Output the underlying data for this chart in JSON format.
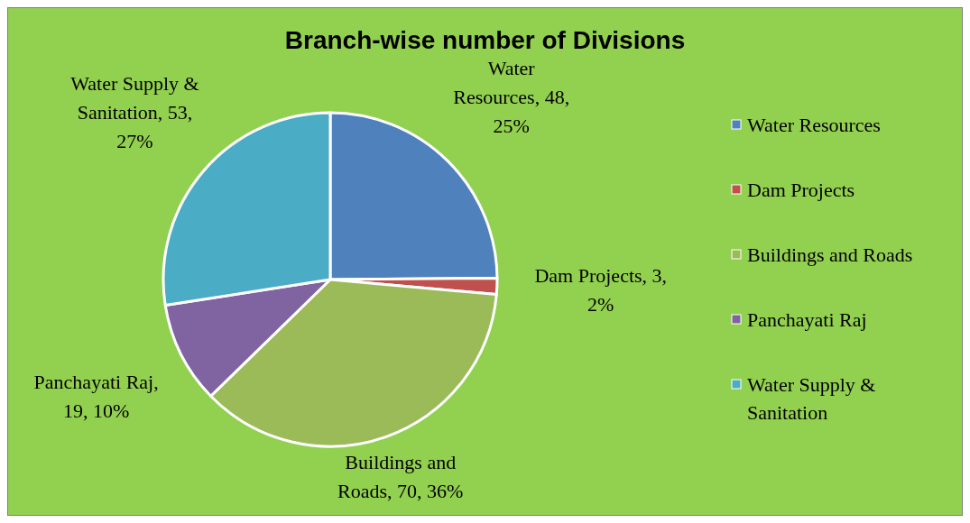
{
  "chart_data": {
    "type": "pie",
    "title": "Branch-wise number of Divisions",
    "categories": [
      "Water Resources",
      "Dam Projects",
      "Buildings and Roads",
      "Panchayati Raj",
      "Water Supply & Sanitation"
    ],
    "values": [
      48,
      3,
      70,
      19,
      53
    ],
    "colors": [
      "#4f81bd",
      "#c0504d",
      "#9bbb59",
      "#8064a2",
      "#4bacc6"
    ],
    "value_labels": [
      "Water Resources, 48, 25%",
      "Dam Projects, 3, 2%",
      "Buildings and Roads, 70, 36%",
      "Panchayati Raj, 19, 10%",
      "Water Supply & Sanitation, 53, 27%"
    ],
    "legend": "right"
  }
}
